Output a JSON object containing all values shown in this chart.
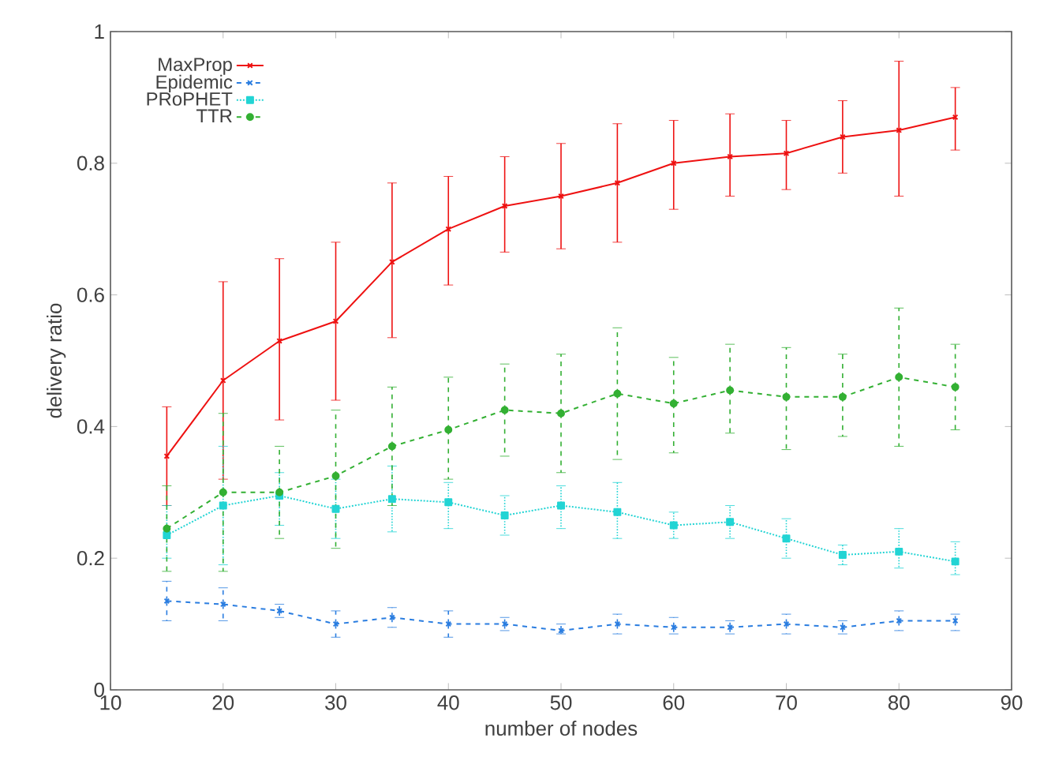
{
  "chart_data": {
    "type": "line",
    "xlabel": "number of nodes",
    "ylabel": "delivery ratio",
    "x": [
      15,
      20,
      25,
      30,
      35,
      40,
      45,
      50,
      55,
      60,
      65,
      70,
      75,
      80,
      85
    ],
    "xlim": [
      10,
      90
    ],
    "xticks": [
      10,
      20,
      30,
      40,
      50,
      60,
      70,
      80,
      90
    ],
    "ylim": [
      0,
      1
    ],
    "yticks": [
      0,
      0.2,
      0.4,
      0.6,
      0.8,
      1
    ],
    "grid": false,
    "legend": "top left",
    "series": [
      {
        "name": "MaxProp",
        "color": "#ee1111",
        "marker": "cross",
        "line_style": "solid",
        "values": [
          0.355,
          0.47,
          0.53,
          0.56,
          0.65,
          0.7,
          0.735,
          0.75,
          0.77,
          0.8,
          0.81,
          0.815,
          0.84,
          0.85,
          0.87
        ],
        "errors": [
          [
            0.28,
            0.43
          ],
          [
            0.32,
            0.62
          ],
          [
            0.41,
            0.655
          ],
          [
            0.44,
            0.68
          ],
          [
            0.535,
            0.77
          ],
          [
            0.615,
            0.78
          ],
          [
            0.665,
            0.81
          ],
          [
            0.67,
            0.83
          ],
          [
            0.68,
            0.86
          ],
          [
            0.73,
            0.865
          ],
          [
            0.75,
            0.875
          ],
          [
            0.76,
            0.865
          ],
          [
            0.785,
            0.895
          ],
          [
            0.75,
            0.955
          ],
          [
            0.82,
            0.915
          ]
        ]
      },
      {
        "name": "Epidemic",
        "color": "#2a7de0",
        "marker": "cross",
        "line_style": "dashed",
        "values": [
          0.135,
          0.13,
          0.12,
          0.1,
          0.11,
          0.1,
          0.1,
          0.09,
          0.1,
          0.095,
          0.095,
          0.1,
          0.095,
          0.105,
          0.105
        ],
        "errors": [
          [
            0.105,
            0.165
          ],
          [
            0.105,
            0.155
          ],
          [
            0.11,
            0.13
          ],
          [
            0.08,
            0.12
          ],
          [
            0.095,
            0.125
          ],
          [
            0.08,
            0.12
          ],
          [
            0.09,
            0.11
          ],
          [
            0.085,
            0.1
          ],
          [
            0.085,
            0.115
          ],
          [
            0.085,
            0.11
          ],
          [
            0.085,
            0.105
          ],
          [
            0.085,
            0.115
          ],
          [
            0.085,
            0.105
          ],
          [
            0.09,
            0.12
          ],
          [
            0.09,
            0.115
          ]
        ]
      },
      {
        "name": "PRoPHET",
        "color": "#22d4d4",
        "marker": "square",
        "line_style": "dotted",
        "values": [
          0.235,
          0.28,
          0.295,
          0.275,
          0.29,
          0.285,
          0.265,
          0.28,
          0.27,
          0.25,
          0.255,
          0.23,
          0.205,
          0.21,
          0.195
        ],
        "errors": [
          [
            0.2,
            0.28
          ],
          [
            0.19,
            0.37
          ],
          [
            0.25,
            0.33
          ],
          [
            0.23,
            0.32
          ],
          [
            0.24,
            0.34
          ],
          [
            0.245,
            0.315
          ],
          [
            0.235,
            0.295
          ],
          [
            0.245,
            0.31
          ],
          [
            0.23,
            0.315
          ],
          [
            0.23,
            0.27
          ],
          [
            0.23,
            0.28
          ],
          [
            0.2,
            0.26
          ],
          [
            0.19,
            0.22
          ],
          [
            0.185,
            0.245
          ],
          [
            0.175,
            0.225
          ]
        ]
      },
      {
        "name": "TTR",
        "color": "#33b033",
        "marker": "circle",
        "line_style": "dashed",
        "values": [
          0.245,
          0.3,
          0.3,
          0.325,
          0.37,
          0.395,
          0.425,
          0.42,
          0.45,
          0.435,
          0.455,
          0.445,
          0.445,
          0.475,
          0.46
        ],
        "errors": [
          [
            0.18,
            0.31
          ],
          [
            0.18,
            0.42
          ],
          [
            0.23,
            0.37
          ],
          [
            0.215,
            0.425
          ],
          [
            0.28,
            0.46
          ],
          [
            0.32,
            0.475
          ],
          [
            0.355,
            0.495
          ],
          [
            0.33,
            0.51
          ],
          [
            0.35,
            0.55
          ],
          [
            0.36,
            0.505
          ],
          [
            0.39,
            0.525
          ],
          [
            0.365,
            0.52
          ],
          [
            0.385,
            0.51
          ],
          [
            0.37,
            0.58
          ],
          [
            0.395,
            0.525
          ]
        ]
      }
    ]
  }
}
